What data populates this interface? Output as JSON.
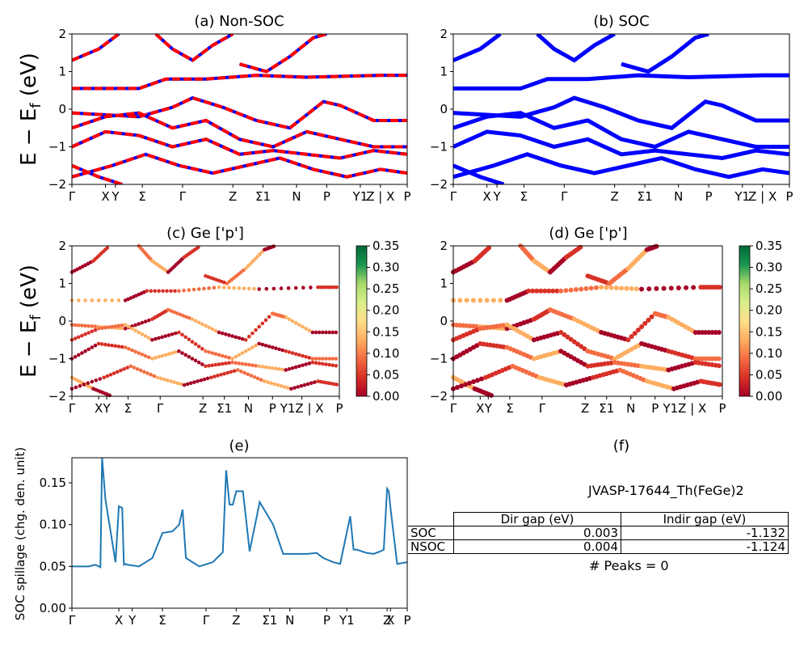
{
  "chart_data": [
    {
      "panel": "a",
      "type": "line",
      "title": "(a) Non-SOC",
      "ylabel": "E − E_f (eV)",
      "ylim": [
        -2,
        2
      ],
      "yticks": [
        "−2",
        "−1",
        "0",
        "1",
        "2"
      ],
      "kpath": [
        "Γ",
        "X",
        "Y",
        "Σ",
        "Γ",
        "Z",
        "Σ1",
        "N",
        "P",
        "Y1",
        "Z | X",
        "P"
      ],
      "colors": {
        "up": "#ff0000",
        "down": "#0000ff"
      },
      "bands": [
        [
          [
            0,
            1.3
          ],
          [
            0.08,
            1.6
          ],
          [
            0.14,
            2.0
          ]
        ],
        [
          [
            0,
            0.55
          ],
          [
            0.2,
            0.55
          ],
          [
            0.28,
            0.8
          ],
          [
            0.4,
            0.8
          ],
          [
            0.55,
            0.9
          ],
          [
            0.7,
            0.85
          ],
          [
            0.92,
            0.9
          ],
          [
            1,
            0.9
          ]
        ],
        [
          [
            0,
            -0.1
          ],
          [
            0.1,
            -0.15
          ],
          [
            0.2,
            -0.2
          ],
          [
            0.3,
            0.05
          ],
          [
            0.36,
            0.3
          ],
          [
            0.45,
            0.05
          ],
          [
            0.55,
            -0.3
          ],
          [
            0.65,
            -0.5
          ],
          [
            0.75,
            0.2
          ],
          [
            0.8,
            0.1
          ],
          [
            0.9,
            -0.3
          ],
          [
            1,
            -0.3
          ]
        ],
        [
          [
            0,
            -0.5
          ],
          [
            0.1,
            -0.2
          ],
          [
            0.2,
            -0.1
          ],
          [
            0.3,
            -0.5
          ],
          [
            0.4,
            -0.3
          ],
          [
            0.5,
            -0.8
          ],
          [
            0.6,
            -1.0
          ],
          [
            0.7,
            -0.6
          ],
          [
            0.8,
            -0.8
          ],
          [
            0.9,
            -1.0
          ],
          [
            1,
            -1.0
          ]
        ],
        [
          [
            0,
            -1.0
          ],
          [
            0.1,
            -0.6
          ],
          [
            0.2,
            -0.7
          ],
          [
            0.3,
            -1.0
          ],
          [
            0.4,
            -0.8
          ],
          [
            0.5,
            -1.2
          ],
          [
            0.6,
            -1.1
          ],
          [
            0.7,
            -1.2
          ],
          [
            0.8,
            -1.3
          ],
          [
            0.9,
            -1.1
          ],
          [
            1,
            -1.2
          ]
        ],
        [
          [
            0,
            -1.5
          ],
          [
            0.08,
            -1.8
          ],
          [
            0.15,
            -2.0
          ]
        ],
        [
          [
            0.25,
            2.0
          ],
          [
            0.3,
            1.6
          ],
          [
            0.36,
            1.3
          ],
          [
            0.42,
            1.7
          ],
          [
            0.48,
            2.0
          ]
        ],
        [
          [
            0.5,
            1.2
          ],
          [
            0.58,
            1.0
          ],
          [
            0.65,
            1.4
          ],
          [
            0.72,
            1.9
          ],
          [
            0.76,
            2.0
          ]
        ],
        [
          [
            0,
            -1.8
          ],
          [
            0.12,
            -1.5
          ],
          [
            0.22,
            -1.2
          ],
          [
            0.32,
            -1.5
          ],
          [
            0.42,
            -1.7
          ],
          [
            0.52,
            -1.5
          ],
          [
            0.62,
            -1.3
          ],
          [
            0.72,
            -1.6
          ],
          [
            0.82,
            -1.8
          ],
          [
            0.92,
            -1.6
          ],
          [
            1,
            -1.7
          ]
        ]
      ]
    },
    {
      "panel": "b",
      "type": "line",
      "title": "(b) SOC",
      "ylim": [
        -2,
        2
      ],
      "yticks": [
        "−2",
        "−1",
        "0",
        "1",
        "2"
      ],
      "kpath": [
        "Γ",
        "X",
        "Y",
        "Σ",
        "Γ",
        "Z",
        "Σ1",
        "N",
        "P",
        "Y1",
        "Z | X",
        "P"
      ],
      "colors": {
        "line": "#0000ff"
      },
      "bands": [
        [
          [
            0,
            1.3
          ],
          [
            0.08,
            1.6
          ],
          [
            0.14,
            2.0
          ]
        ],
        [
          [
            0,
            0.55
          ],
          [
            0.2,
            0.55
          ],
          [
            0.28,
            0.8
          ],
          [
            0.4,
            0.8
          ],
          [
            0.55,
            0.9
          ],
          [
            0.7,
            0.85
          ],
          [
            0.92,
            0.9
          ],
          [
            1,
            0.9
          ]
        ],
        [
          [
            0,
            -0.1
          ],
          [
            0.1,
            -0.15
          ],
          [
            0.2,
            -0.2
          ],
          [
            0.3,
            0.05
          ],
          [
            0.36,
            0.3
          ],
          [
            0.45,
            0.05
          ],
          [
            0.55,
            -0.3
          ],
          [
            0.65,
            -0.5
          ],
          [
            0.75,
            0.2
          ],
          [
            0.8,
            0.1
          ],
          [
            0.9,
            -0.3
          ],
          [
            1,
            -0.3
          ]
        ],
        [
          [
            0,
            -0.5
          ],
          [
            0.1,
            -0.2
          ],
          [
            0.2,
            -0.1
          ],
          [
            0.3,
            -0.5
          ],
          [
            0.4,
            -0.3
          ],
          [
            0.5,
            -0.8
          ],
          [
            0.6,
            -1.0
          ],
          [
            0.7,
            -0.6
          ],
          [
            0.8,
            -0.8
          ],
          [
            0.9,
            -1.0
          ],
          [
            1,
            -1.0
          ]
        ],
        [
          [
            0,
            -1.0
          ],
          [
            0.1,
            -0.6
          ],
          [
            0.2,
            -0.7
          ],
          [
            0.3,
            -1.0
          ],
          [
            0.4,
            -0.8
          ],
          [
            0.5,
            -1.2
          ],
          [
            0.6,
            -1.1
          ],
          [
            0.7,
            -1.2
          ],
          [
            0.8,
            -1.3
          ],
          [
            0.9,
            -1.1
          ],
          [
            1,
            -1.2
          ]
        ],
        [
          [
            0,
            -1.5
          ],
          [
            0.08,
            -1.8
          ],
          [
            0.15,
            -2.0
          ]
        ],
        [
          [
            0.25,
            2.0
          ],
          [
            0.3,
            1.6
          ],
          [
            0.36,
            1.3
          ],
          [
            0.42,
            1.7
          ],
          [
            0.48,
            2.0
          ]
        ],
        [
          [
            0.5,
            1.2
          ],
          [
            0.58,
            1.0
          ],
          [
            0.65,
            1.4
          ],
          [
            0.72,
            1.9
          ],
          [
            0.76,
            2.0
          ]
        ],
        [
          [
            0,
            -1.8
          ],
          [
            0.12,
            -1.5
          ],
          [
            0.22,
            -1.2
          ],
          [
            0.32,
            -1.5
          ],
          [
            0.42,
            -1.7
          ],
          [
            0.52,
            -1.5
          ],
          [
            0.62,
            -1.3
          ],
          [
            0.72,
            -1.6
          ],
          [
            0.82,
            -1.8
          ],
          [
            0.92,
            -1.6
          ],
          [
            1,
            -1.7
          ]
        ]
      ]
    },
    {
      "panel": "c",
      "type": "scatter",
      "title": "(c)  Ge ['p']",
      "ylabel": "E − E_f (eV)",
      "ylim": [
        -2,
        2
      ],
      "yticks": [
        "−2",
        "−1",
        "0",
        "1",
        "2"
      ],
      "kpath": [
        "Γ",
        "X",
        "Y",
        "Σ",
        "Γ",
        "Z",
        "Σ1",
        "N",
        "P",
        "Y1Z | X",
        "P"
      ],
      "colorbar": {
        "ticks": [
          "0.00",
          "0.05",
          "0.10",
          "0.15",
          "0.20",
          "0.25",
          "0.30",
          "0.35"
        ],
        "range": [
          0,
          0.35
        ]
      }
    },
    {
      "panel": "d",
      "type": "scatter",
      "title": "(d) Ge ['p']",
      "ylim": [
        -2,
        2
      ],
      "yticks": [
        "−2",
        "−1",
        "0",
        "1",
        "2"
      ],
      "kpath": [
        "Γ",
        "X",
        "Y",
        "Σ",
        "Γ",
        "Z",
        "Σ1",
        "N",
        "P",
        "Y1Z | X",
        "P"
      ],
      "colorbar": {
        "ticks": [
          "0.00",
          "0.05",
          "0.10",
          "0.15",
          "0.20",
          "0.25",
          "0.30",
          "0.35"
        ],
        "range": [
          0,
          0.35
        ]
      }
    },
    {
      "panel": "e",
      "type": "line",
      "title": "(e)",
      "ylabel": "SOC spillage (chg. den. unit)",
      "ylim": [
        0,
        0.18
      ],
      "yticks": [
        "0.00",
        "0.05",
        "0.10",
        "0.15"
      ],
      "kpath": [
        "Γ",
        "X",
        "Y",
        "Σ",
        "Γ",
        "Z",
        "Σ1",
        "N",
        "P",
        "Y1",
        "Z",
        "X",
        "P"
      ],
      "color": "#1f77b4",
      "x": [
        0,
        0.05,
        0.07,
        0.08,
        0.085,
        0.09,
        0.1,
        0.13,
        0.14,
        0.15,
        0.155,
        0.16,
        0.165,
        0.2,
        0.24,
        0.27,
        0.3,
        0.32,
        0.33,
        0.34,
        0.38,
        0.42,
        0.45,
        0.46,
        0.47,
        0.48,
        0.49,
        0.5,
        0.51,
        0.53,
        0.56,
        0.6,
        0.63,
        0.66,
        0.7,
        0.73,
        0.75,
        0.78,
        0.8,
        0.83,
        0.84,
        0.85,
        0.88,
        0.9,
        0.92,
        0.93,
        0.94,
        0.945,
        0.95,
        0.97,
        1
      ],
      "values": [
        0.05,
        0.05,
        0.052,
        0.05,
        0.049,
        0.18,
        0.13,
        0.055,
        0.122,
        0.12,
        0.052,
        0.053,
        0.052,
        0.05,
        0.06,
        0.09,
        0.092,
        0.1,
        0.118,
        0.06,
        0.05,
        0.055,
        0.067,
        0.165,
        0.124,
        0.124,
        0.14,
        0.14,
        0.14,
        0.068,
        0.127,
        0.1,
        0.065,
        0.065,
        0.065,
        0.066,
        0.06,
        0.055,
        0.053,
        0.11,
        0.07,
        0.07,
        0.066,
        0.065,
        0.068,
        0.07,
        0.143,
        0.14,
        0.12,
        0.053,
        0.055
      ]
    },
    {
      "panel": "f",
      "type": "table",
      "title": "(f)",
      "material": "JVASP-17644_Th(FeGe)2",
      "columns": [
        "Dir gap (eV)",
        "Indir gap (eV)"
      ],
      "rows": [
        {
          "label": "SOC",
          "dir": "0.003",
          "indir": "-1.132"
        },
        {
          "label": "NSOC",
          "dir": "0.004",
          "indir": "-1.124"
        }
      ],
      "peaks": "# Peaks = 0"
    }
  ]
}
